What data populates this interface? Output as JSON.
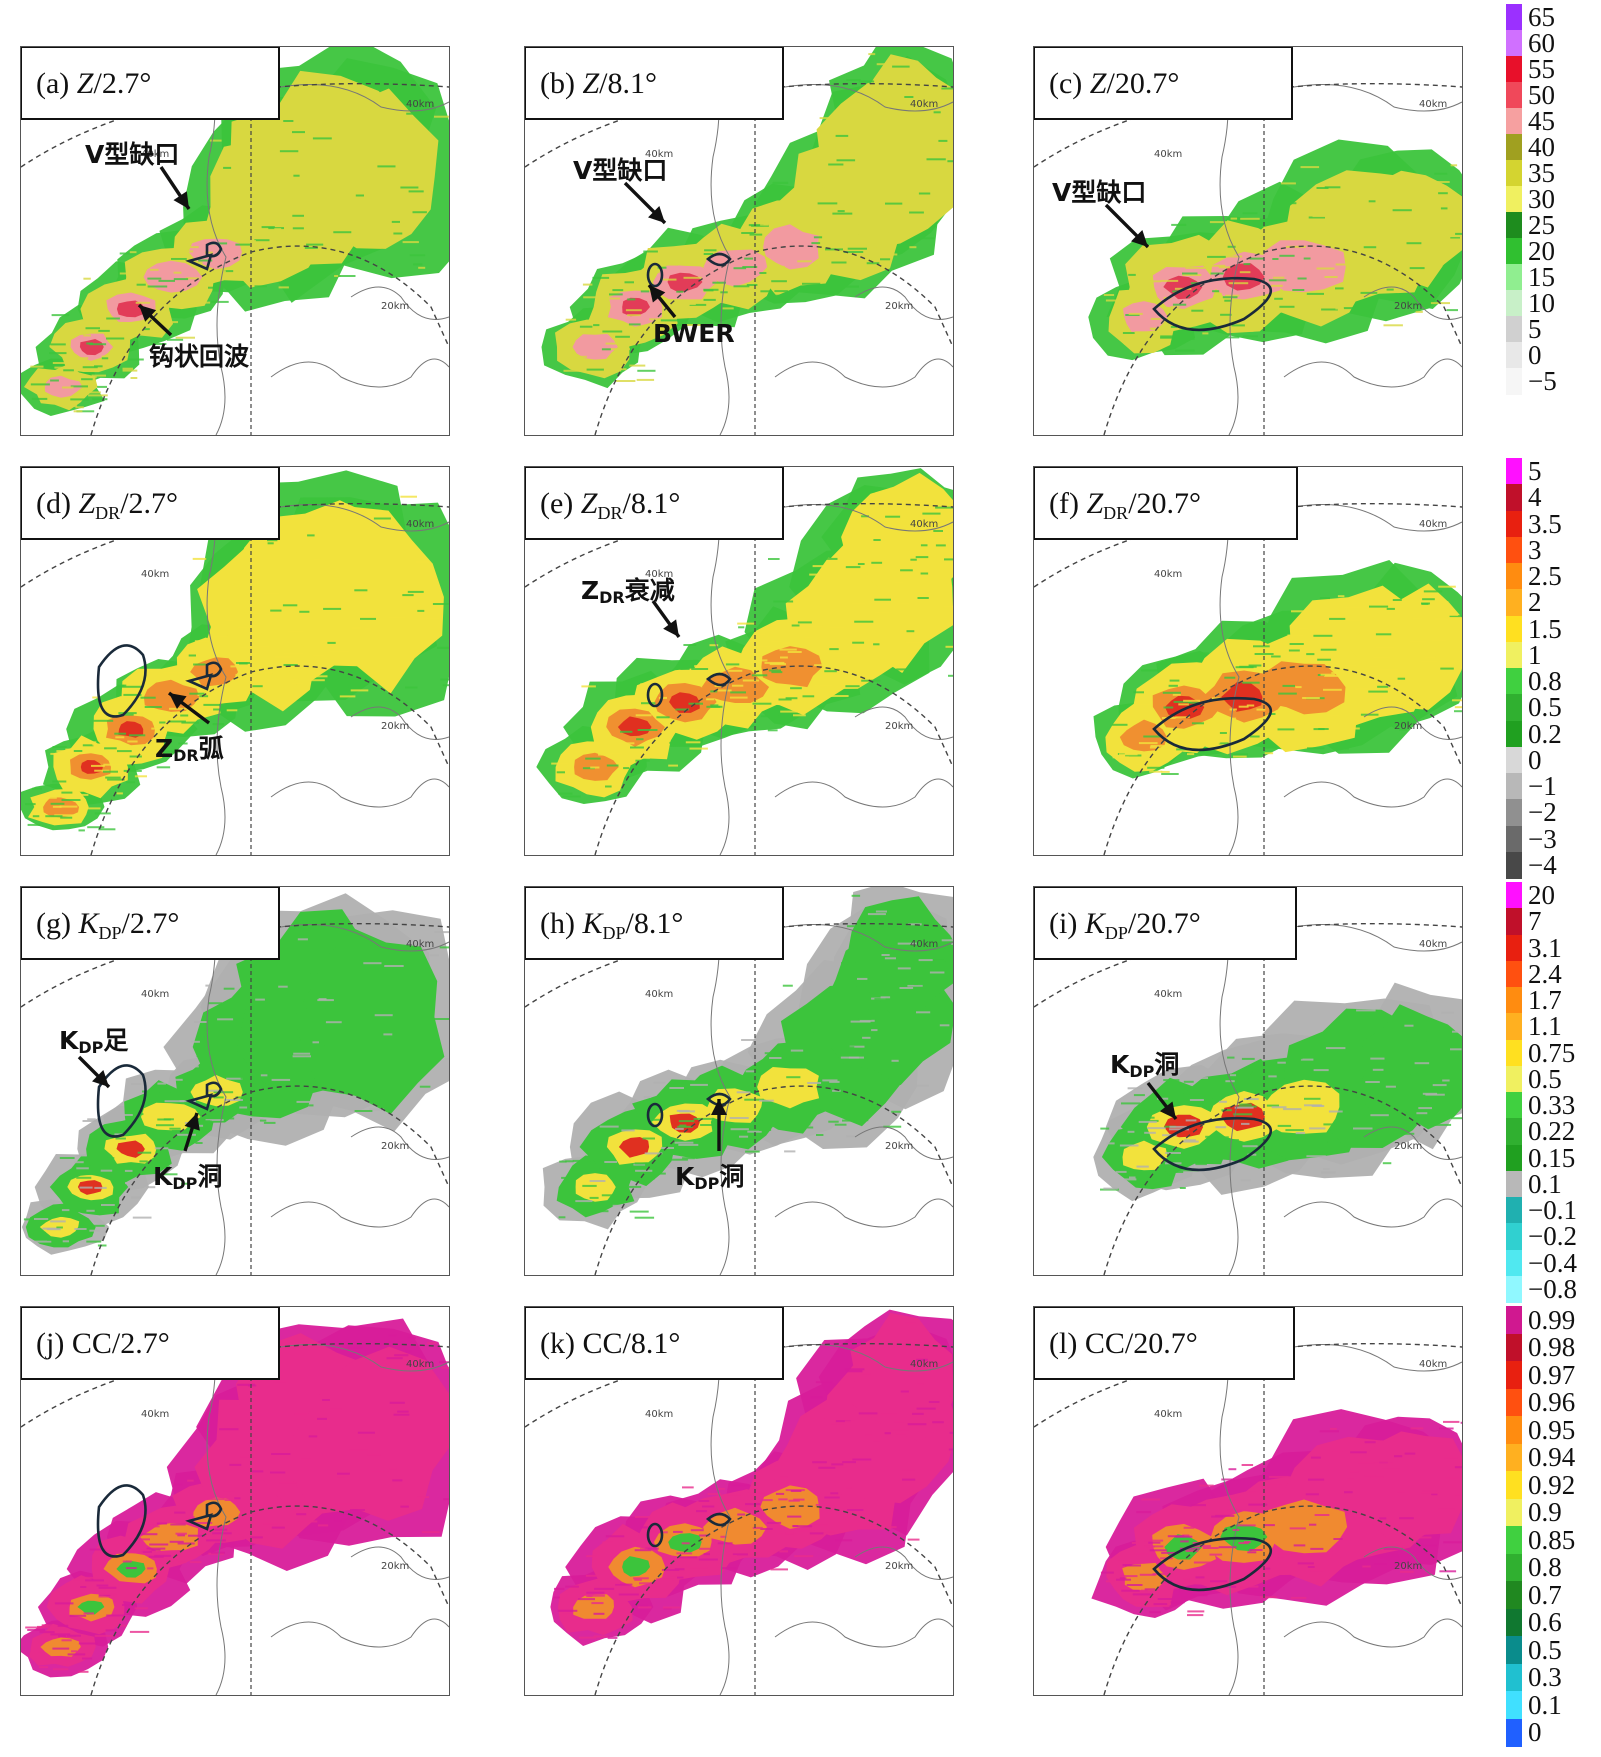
{
  "panels": [
    {
      "id": "a",
      "prefix": "(a) ",
      "var": "Z",
      "sub": "",
      "suffix": "/2.7°",
      "field": "Z",
      "elev": "2.7"
    },
    {
      "id": "b",
      "prefix": "(b) ",
      "var": "Z",
      "sub": "",
      "suffix": "/8.1°",
      "field": "Z",
      "elev": "8.1"
    },
    {
      "id": "c",
      "prefix": "(c) ",
      "var": "Z",
      "sub": "",
      "suffix": "/20.7°",
      "field": "Z",
      "elev": "20.7"
    },
    {
      "id": "d",
      "prefix": "(d) ",
      "var": "Z",
      "sub": "DR",
      "suffix": "/2.7°",
      "field": "ZDR",
      "elev": "2.7"
    },
    {
      "id": "e",
      "prefix": "(e) ",
      "var": "Z",
      "sub": "DR",
      "suffix": "/8.1°",
      "field": "ZDR",
      "elev": "8.1"
    },
    {
      "id": "f",
      "prefix": "(f) ",
      "var": "Z",
      "sub": "DR",
      "suffix": "/20.7°",
      "field": "ZDR",
      "elev": "20.7"
    },
    {
      "id": "g",
      "prefix": "(g) ",
      "var": "K",
      "sub": "DP",
      "suffix": "/2.7°",
      "field": "KDP",
      "elev": "2.7"
    },
    {
      "id": "h",
      "prefix": "(h) ",
      "var": "K",
      "sub": "DP",
      "suffix": "/8.1°",
      "field": "KDP",
      "elev": "8.1"
    },
    {
      "id": "i",
      "prefix": "(i) ",
      "var": "K",
      "sub": "DP",
      "suffix": "/20.7°",
      "field": "KDP",
      "elev": "20.7"
    },
    {
      "id": "j",
      "prefix": "(j) ",
      "var": "CC",
      "sub": "",
      "suffix": "/2.7°",
      "field": "CC",
      "elev": "2.7"
    },
    {
      "id": "k",
      "prefix": "(k) ",
      "var": "CC",
      "sub": "",
      "suffix": "/8.1°",
      "field": "CC",
      "elev": "8.1"
    },
    {
      "id": "l",
      "prefix": "(l) ",
      "var": "CC",
      "sub": "",
      "suffix": "/20.7°",
      "field": "CC",
      "elev": "20.7"
    }
  ],
  "range_labels": {
    "r40": "40km",
    "r20": "20km"
  },
  "annotations": {
    "a_vnotch": "V型缺口",
    "a_hook": "钩状回波",
    "b_vnotch": "V型缺口",
    "b_bwer": "BWER",
    "c_vnotch": "V型缺口",
    "d_zdr": "Z",
    "d_zdr_sub": "DR",
    "d_zdr_tail": "弧",
    "e_zdr": "Z",
    "e_zdr_sub": "DR",
    "e_zdr_tail": "衰减",
    "g_kdp": "K",
    "g_kdp_sub": "DP",
    "g_kdp_tail": "足",
    "g_kdp2": "K",
    "g_kdp2_sub": "DP",
    "g_kdp2_tail": "洞",
    "h_kdp": "K",
    "h_kdp_sub": "DP",
    "h_kdp_tail": "洞",
    "i_kdp": "K",
    "i_kdp_sub": "DP",
    "i_kdp_tail": "洞"
  },
  "colorbars": [
    {
      "id": "Z",
      "ticks": [
        "65",
        "60",
        "55",
        "50",
        "45",
        "40",
        "35",
        "30",
        "25",
        "20",
        "15",
        "10",
        "5",
        "0",
        "−5"
      ],
      "colors": [
        "#9b30ff",
        "#d070ff",
        "#e8102a",
        "#f0485a",
        "#f6a0a0",
        "#a0a020",
        "#d4d430",
        "#f0f060",
        "#1e8c1e",
        "#30c030",
        "#90ee90",
        "#c8f0c8",
        "#d0d0d0",
        "#e8e8e8",
        "#f6f6f6"
      ]
    },
    {
      "id": "ZDR",
      "ticks": [
        "5",
        "4",
        "3.5",
        "3",
        "2.5",
        "2",
        "1.5",
        "1",
        "0.8",
        "0.5",
        "0.2",
        "0",
        "−1",
        "−2",
        "−3",
        "−4"
      ],
      "colors": [
        "#ff10ff",
        "#c0102a",
        "#e82010",
        "#ff5010",
        "#ff8c10",
        "#ffb020",
        "#ffe020",
        "#f0f060",
        "#40d040",
        "#30b030",
        "#20a020",
        "#d8d8d8",
        "#b8b8b8",
        "#909090",
        "#6a6a6a",
        "#484848"
      ]
    },
    {
      "id": "KDP",
      "ticks": [
        "20",
        "7",
        "3.1",
        "2.4",
        "1.7",
        "1.1",
        "0.75",
        "0.5",
        "0.33",
        "0.22",
        "0.15",
        "0.1",
        "−0.1",
        "−0.2",
        "−0.4",
        "−0.8"
      ],
      "colors": [
        "#ff10ff",
        "#c0102a",
        "#e82010",
        "#ff5010",
        "#ff8c10",
        "#ffb020",
        "#ffe020",
        "#f0f060",
        "#40d040",
        "#30b030",
        "#20a020",
        "#b8b8b8",
        "#20b0b0",
        "#30d0d0",
        "#50e8f0",
        "#90f8ff"
      ]
    },
    {
      "id": "CC",
      "ticks": [
        "0.99",
        "0.98",
        "0.97",
        "0.96",
        "0.95",
        "0.94",
        "0.92",
        "0.9",
        "0.85",
        "0.8",
        "0.7",
        "0.6",
        "0.5",
        "0.3",
        "0.1",
        "0"
      ],
      "colors": [
        "#d01890",
        "#c0102a",
        "#e82010",
        "#ff5010",
        "#ff8c10",
        "#ffb020",
        "#ffe020",
        "#f0f060",
        "#40d040",
        "#30b030",
        "#208820",
        "#107830",
        "#0a8c8c",
        "#20c0d0",
        "#40e0ff",
        "#2060ff"
      ]
    }
  ]
}
